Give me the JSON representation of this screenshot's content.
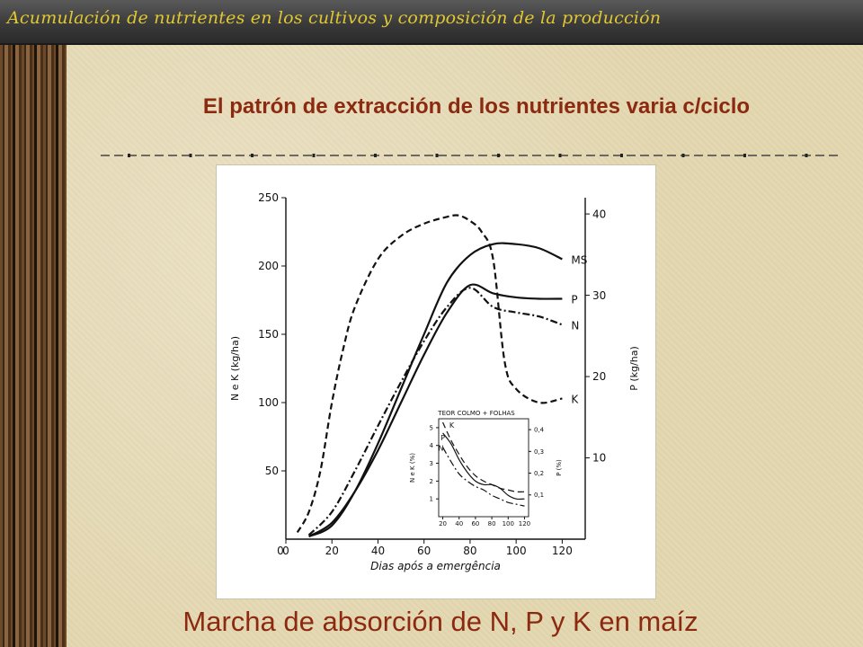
{
  "slide": {
    "header_title": "Acumulación de nutrientes en los cultivos y  composición de la producción",
    "subtitle": "El patrón de extracción de los nutrientes varia c/ciclo",
    "caption": "Marcha de absorción de N, P y K en maíz"
  },
  "colors": {
    "header_text": "#e0c832",
    "accent_red": "#8b2a10",
    "background": "#e4d8b2"
  },
  "chart_data": [
    {
      "type": "line",
      "title": "",
      "xlabel": "Dias após a emergência",
      "ylabel": "N e K (kg/ha)",
      "y2label": "P (kg/ha)",
      "xlim": [
        0,
        130
      ],
      "ylim": [
        0,
        250
      ],
      "y2lim": [
        0,
        42
      ],
      "xticks": [
        0,
        20,
        40,
        60,
        80,
        100,
        120
      ],
      "yticks": [
        50,
        100,
        150,
        200,
        250
      ],
      "y2ticks": [
        10,
        20,
        30,
        40
      ],
      "grid": false,
      "series": [
        {
          "name": "MS",
          "axis": "left",
          "style": "solid",
          "x": [
            10,
            20,
            30,
            40,
            50,
            60,
            70,
            80,
            90,
            100,
            110,
            120
          ],
          "y": [
            2,
            10,
            35,
            70,
            110,
            150,
            188,
            208,
            216,
            216,
            213,
            205
          ]
        },
        {
          "name": "P",
          "axis": "left",
          "style": "solid",
          "x": [
            10,
            20,
            30,
            40,
            50,
            60,
            70,
            80,
            90,
            100,
            110,
            120
          ],
          "y": [
            2,
            12,
            35,
            65,
            100,
            135,
            166,
            186,
            180,
            177,
            176,
            176
          ]
        },
        {
          "name": "N",
          "axis": "left",
          "style": "dashdot",
          "x": [
            10,
            20,
            30,
            40,
            50,
            60,
            70,
            80,
            90,
            100,
            110,
            120
          ],
          "y": [
            3,
            20,
            50,
            83,
            115,
            145,
            170,
            184,
            170,
            166,
            163,
            157
          ]
        },
        {
          "name": "K",
          "axis": "left",
          "style": "dashed",
          "x": [
            5,
            10,
            15,
            20,
            25,
            30,
            40,
            50,
            60,
            70,
            75,
            80,
            85,
            90,
            95,
            100,
            110,
            120
          ],
          "y": [
            5,
            20,
            50,
            100,
            140,
            170,
            205,
            222,
            231,
            236,
            237,
            233,
            225,
            205,
            130,
            110,
            100,
            103
          ]
        }
      ]
    },
    {
      "type": "line",
      "title": "TEOR COLMO + FOLHAS",
      "ylabel": "N e K (%)",
      "y2label": "P (%)",
      "xlim": [
        15,
        125
      ],
      "ylim": [
        0,
        5.5
      ],
      "y2lim": [
        0,
        0.45
      ],
      "xticks": [
        20,
        40,
        60,
        80,
        100,
        120
      ],
      "yticks": [
        1,
        2,
        3,
        4,
        5
      ],
      "y2ticks": [
        0.1,
        0.2,
        0.3,
        0.4
      ],
      "series": [
        {
          "name": "K",
          "style": "dashed",
          "x": [
            20,
            30,
            40,
            50,
            60,
            70,
            80,
            90,
            100,
            110,
            120
          ],
          "y": [
            5.3,
            4.3,
            3.5,
            2.8,
            2.3,
            2.0,
            1.8,
            1.6,
            1.5,
            1.4,
            1.4
          ]
        },
        {
          "name": "P",
          "style": "solid",
          "x": [
            20,
            30,
            40,
            50,
            60,
            70,
            80,
            90,
            100,
            110,
            120
          ],
          "y": [
            4.7,
            4.1,
            3.2,
            2.5,
            2.0,
            1.8,
            1.8,
            1.6,
            1.2,
            1.0,
            1.0
          ]
        },
        {
          "name": "N",
          "style": "dashdot",
          "x": [
            20,
            30,
            40,
            50,
            60,
            70,
            80,
            90,
            100,
            110,
            120
          ],
          "y": [
            3.9,
            3.1,
            2.4,
            2.0,
            1.7,
            1.5,
            1.2,
            1.0,
            0.8,
            0.7,
            0.6
          ]
        }
      ]
    }
  ]
}
